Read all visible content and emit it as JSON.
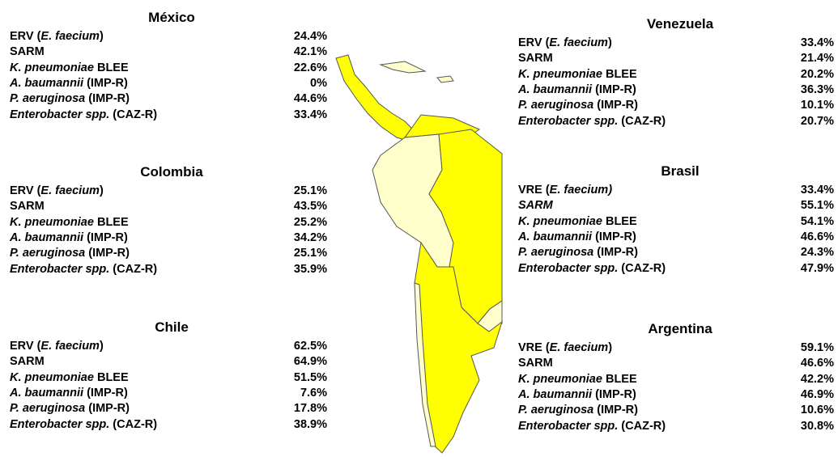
{
  "panels": [
    {
      "title": "México",
      "rows": [
        {
          "label": [
            {
              "text": "ERV ("
            },
            {
              "text": "E. faecium",
              "italic": true
            },
            {
              "text": ")"
            }
          ],
          "value": "24.4%"
        },
        {
          "label": [
            {
              "text": "SARM"
            }
          ],
          "value": "42.1%"
        },
        {
          "label": [
            {
              "text": "K. pneumoniae",
              "italic": true
            },
            {
              "text": " BLEE"
            }
          ],
          "value": "22.6%"
        },
        {
          "label": [
            {
              "text": "A. baumannii",
              "italic": true
            },
            {
              "text": " (IMP-R)"
            }
          ],
          "value": "0%"
        },
        {
          "label": [
            {
              "text": "P. aeruginosa",
              "italic": true
            },
            {
              "text": " (IMP-R)"
            }
          ],
          "value": "44.6%"
        },
        {
          "label": [
            {
              "text": "Enterobacter spp.",
              "italic": true
            },
            {
              "text": " (CAZ-R)"
            }
          ],
          "value": "33.4%"
        }
      ]
    },
    {
      "title": "Colombia",
      "rows": [
        {
          "label": [
            {
              "text": "ERV ("
            },
            {
              "text": "E. faecium",
              "italic": true
            },
            {
              "text": ")"
            }
          ],
          "value": "25.1%"
        },
        {
          "label": [
            {
              "text": "SARM"
            }
          ],
          "value": "43.5%"
        },
        {
          "label": [
            {
              "text": "K. pneumoniae",
              "italic": true
            },
            {
              "text": " BLEE"
            }
          ],
          "value": "25.2%"
        },
        {
          "label": [
            {
              "text": "A. baumannii",
              "italic": true
            },
            {
              "text": " (IMP-R)"
            }
          ],
          "value": "34.2%"
        },
        {
          "label": [
            {
              "text": "P. aeruginosa",
              "italic": true
            },
            {
              "text": " (IMP-R)"
            }
          ],
          "value": "25.1%"
        },
        {
          "label": [
            {
              "text": "Enterobacter spp.",
              "italic": true
            },
            {
              "text": " (CAZ-R)"
            }
          ],
          "value": "35.9%"
        }
      ]
    },
    {
      "title": "Chile",
      "rows": [
        {
          "label": [
            {
              "text": "ERV ("
            },
            {
              "text": "E. faecium",
              "italic": true
            },
            {
              "text": ")"
            }
          ],
          "value": "62.5%"
        },
        {
          "label": [
            {
              "text": "SARM"
            }
          ],
          "value": "64.9%"
        },
        {
          "label": [
            {
              "text": "K. pneumoniae",
              "italic": true
            },
            {
              "text": " BLEE"
            }
          ],
          "value": "51.5%"
        },
        {
          "label": [
            {
              "text": "A. baumannii",
              "italic": true
            },
            {
              "text": " (IMP-R)"
            }
          ],
          "value": "7.6%"
        },
        {
          "label": [
            {
              "text": "P. aeruginosa",
              "italic": true
            },
            {
              "text": " (IMP-R)"
            }
          ],
          "value": "17.8%"
        },
        {
          "label": [
            {
              "text": "Enterobacter spp.",
              "italic": true
            },
            {
              "text": " (CAZ-R)"
            }
          ],
          "value": "38.9%"
        }
      ]
    },
    {
      "title": "Venezuela",
      "rows": [
        {
          "label": [
            {
              "text": "ERV ("
            },
            {
              "text": "E. faecium",
              "italic": true
            },
            {
              "text": ")"
            }
          ],
          "value": "33.4%"
        },
        {
          "label": [
            {
              "text": "SARM"
            }
          ],
          "value": "21.4%"
        },
        {
          "label": [
            {
              "text": "K. pneumoniae",
              "italic": true
            },
            {
              "text": " BLEE"
            }
          ],
          "value": "20.2%"
        },
        {
          "label": [
            {
              "text": "A. baumannii",
              "italic": true
            },
            {
              "text": " (IMP-R)"
            }
          ],
          "value": "36.3%"
        },
        {
          "label": [
            {
              "text": "P. aeruginosa",
              "italic": true
            },
            {
              "text": " (IMP-R)"
            }
          ],
          "value": "10.1%"
        },
        {
          "label": [
            {
              "text": "Enterobacter spp.",
              "italic": true
            },
            {
              "text": " (CAZ-R)"
            }
          ],
          "value": "20.7%"
        }
      ]
    },
    {
      "title": "Brasil",
      "rows": [
        {
          "label": [
            {
              "text": "VRE ("
            },
            {
              "text": "E. faecium)",
              "italic": true
            }
          ],
          "value": "33.4%"
        },
        {
          "label": [
            {
              "text": "SARM",
              "italic": true
            }
          ],
          "value": "55.1%"
        },
        {
          "label": [
            {
              "text": "K. pneumoniae",
              "italic": true
            },
            {
              "text": " BLEE"
            }
          ],
          "value": "54.1%"
        },
        {
          "label": [
            {
              "text": "A. baumannii",
              "italic": true
            },
            {
              "text": " (IMP-R)"
            }
          ],
          "value": "46.6%"
        },
        {
          "label": [
            {
              "text": "P. aeruginosa",
              "italic": true
            },
            {
              "text": " (IMP-R)"
            }
          ],
          "value": "24.3%"
        },
        {
          "label": [
            {
              "text": "Enterobacter spp.",
              "italic": true
            },
            {
              "text": " (CAZ-R)"
            }
          ],
          "value": "47.9%"
        }
      ]
    },
    {
      "title": "Argentina",
      "rows": [
        {
          "label": [
            {
              "text": "VRE ("
            },
            {
              "text": "E. faecium",
              "italic": true
            },
            {
              "text": ")"
            }
          ],
          "value": "59.1%"
        },
        {
          "label": [
            {
              "text": "SARM"
            }
          ],
          "value": "46.6%"
        },
        {
          "label": [
            {
              "text": "K. pneumoniae",
              "italic": true
            },
            {
              "text": " BLEE"
            }
          ],
          "value": "42.2%"
        },
        {
          "label": [
            {
              "text": "A. baumannii",
              "italic": true
            },
            {
              "text": " (IMP-R)"
            }
          ],
          "value": "46.9%"
        },
        {
          "label": [
            {
              "text": "P. aeruginosa",
              "italic": true
            },
            {
              "text": " (IMP-R)"
            }
          ],
          "value": "10.6%"
        },
        {
          "label": [
            {
              "text": "Enterobacter spp.",
              "italic": true
            },
            {
              "text": " (CAZ-R)"
            }
          ],
          "value": "30.8%"
        }
      ]
    }
  ]
}
